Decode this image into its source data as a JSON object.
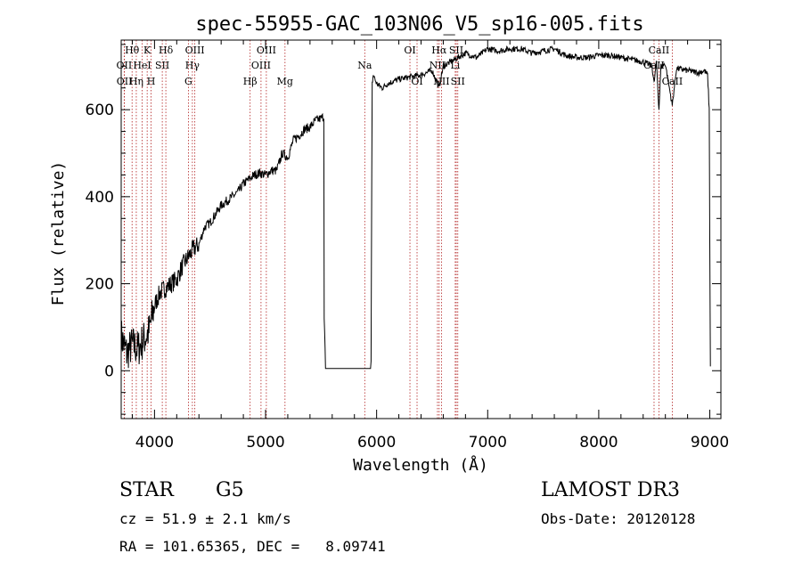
{
  "chart_data": {
    "type": "line",
    "title": "spec-55955-GAC_103N06_V5_sp16-005.fits",
    "xlabel": "Wavelength (Å)",
    "ylabel": "Flux (relative)",
    "xlim": [
      3700,
      9100
    ],
    "ylim": [
      -110,
      760
    ],
    "xticks": [
      4000,
      5000,
      6000,
      7000,
      8000,
      9000
    ],
    "yticks": [
      0,
      200,
      400,
      600
    ],
    "grid": false,
    "series": [
      {
        "name": "flux",
        "x": [
          3700,
          3750,
          3800,
          3850,
          3900,
          3950,
          4000,
          4050,
          4100,
          4150,
          4200,
          4250,
          4300,
          4350,
          4400,
          4450,
          4500,
          4550,
          4600,
          4650,
          4700,
          4750,
          4800,
          4850,
          4900,
          4950,
          5000,
          5050,
          5100,
          5150,
          5200,
          5250,
          5300,
          5350,
          5400,
          5450,
          5500,
          5525,
          5528,
          5540,
          5700,
          5900,
          5945,
          5950,
          5960,
          5970,
          6000,
          6050,
          6100,
          6150,
          6200,
          6300,
          6400,
          6500,
          6563,
          6600,
          6700,
          6800,
          6900,
          7000,
          7100,
          7200,
          7300,
          7400,
          7500,
          7600,
          7700,
          7800,
          7900,
          8000,
          8100,
          8200,
          8300,
          8400,
          8480,
          8498,
          8520,
          8542,
          8560,
          8600,
          8662,
          8700,
          8800,
          8900,
          8950,
          8980,
          8995,
          9000,
          9005
        ],
        "y": [
          80,
          40,
          60,
          50,
          70,
          90,
          150,
          180,
          190,
          200,
          210,
          240,
          260,
          280,
          290,
          330,
          340,
          360,
          380,
          390,
          400,
          410,
          430,
          440,
          450,
          455,
          450,
          460,
          460,
          500,
          490,
          530,
          540,
          555,
          560,
          575,
          580,
          585,
          130,
          5,
          5,
          5,
          5,
          20,
          660,
          680,
          660,
          650,
          660,
          665,
          670,
          675,
          680,
          690,
          650,
          700,
          715,
          730,
          720,
          740,
          735,
          740,
          740,
          730,
          735,
          740,
          725,
          720,
          720,
          725,
          725,
          720,
          715,
          710,
          700,
          660,
          710,
          600,
          700,
          705,
          610,
          695,
          690,
          685,
          690,
          680,
          600,
          300,
          10
        ]
      }
    ],
    "lines": [
      {
        "label": "Hθ",
        "x": 3798,
        "row": 1
      },
      {
        "label": "OII",
        "x": 3727,
        "row": 2
      },
      {
        "label": "OII",
        "x": 3729,
        "row": 3
      },
      {
        "label": "Hη",
        "x": 3836,
        "row": 3
      },
      {
        "label": "HeI",
        "x": 3889,
        "row": 2
      },
      {
        "label": "K",
        "x": 3934,
        "row": 1
      },
      {
        "label": "H",
        "x": 3969,
        "row": 3
      },
      {
        "label": "SII",
        "x": 4070,
        "row": 2
      },
      {
        "label": "Hδ",
        "x": 4102,
        "row": 1
      },
      {
        "label": "OIII",
        "x": 4363,
        "row": 1
      },
      {
        "label": "Hγ",
        "x": 4341,
        "row": 2
      },
      {
        "label": "G",
        "x": 4305,
        "row": 3
      },
      {
        "label": "Hβ",
        "x": 4861,
        "row": 3
      },
      {
        "label": "OIII",
        "x": 5007,
        "row": 1
      },
      {
        "label": "OIII",
        "x": 4959,
        "row": 2
      },
      {
        "label": "Mg",
        "x": 5175,
        "row": 3
      },
      {
        "label": "Na",
        "x": 5893,
        "row": 2
      },
      {
        "label": "OI",
        "x": 6300,
        "row": 1
      },
      {
        "label": "OI",
        "x": 6364,
        "row": 3
      },
      {
        "label": "Hα",
        "x": 6563,
        "row": 1
      },
      {
        "label": "NII",
        "x": 6548,
        "row": 2
      },
      {
        "label": "NII",
        "x": 6584,
        "row": 3
      },
      {
        "label": "SII",
        "x": 6717,
        "row": 1
      },
      {
        "label": "Li",
        "x": 6708,
        "row": 2
      },
      {
        "label": "SII",
        "x": 6731,
        "row": 3
      },
      {
        "label": "CaII",
        "x": 8542,
        "row": 1
      },
      {
        "label": "CaII",
        "x": 8498,
        "row": 2
      },
      {
        "label": "CaII",
        "x": 8662,
        "row": 3
      }
    ]
  },
  "footer": {
    "object_type": "STAR",
    "subclass": "G5",
    "survey": "LAMOST DR3",
    "velocity": "cz = 51.9 ± 2.1 km/s",
    "obs_date": "Obs-Date: 20120128",
    "coords": "RA = 101.65365, DEC =   8.09741"
  },
  "colors": {
    "line_marker": "#b22222",
    "spectrum": "#000000"
  }
}
